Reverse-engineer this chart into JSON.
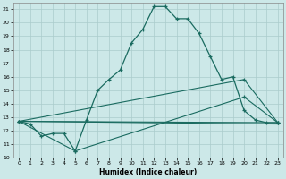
{
  "xlabel": "Humidex (Indice chaleur)",
  "background_color": "#cce8e8",
  "grid_color": "#aacccc",
  "line_color": "#1a6b60",
  "xlim": [
    -0.5,
    23.5
  ],
  "ylim": [
    10,
    21.5
  ],
  "yticks": [
    10,
    11,
    12,
    13,
    14,
    15,
    16,
    17,
    18,
    19,
    20,
    21
  ],
  "xticks": [
    0,
    1,
    2,
    3,
    4,
    5,
    6,
    7,
    8,
    9,
    10,
    11,
    12,
    13,
    14,
    15,
    16,
    17,
    18,
    19,
    20,
    21,
    22,
    23
  ],
  "line1_x": [
    0,
    1,
    2,
    3,
    4,
    5,
    6,
    7,
    8,
    9,
    10,
    11,
    12,
    13,
    14,
    15,
    16,
    17,
    18,
    19,
    20,
    21,
    22,
    23
  ],
  "line1_y": [
    12.7,
    12.5,
    11.6,
    11.8,
    11.8,
    10.5,
    12.8,
    15.0,
    15.8,
    16.5,
    18.5,
    19.5,
    21.2,
    21.2,
    20.3,
    20.3,
    19.2,
    17.5,
    15.8,
    16.0,
    13.5,
    12.8,
    12.6,
    12.6
  ],
  "line2_x": [
    0,
    23
  ],
  "line2_y": [
    12.7,
    12.6
  ],
  "line3_x": [
    0,
    5,
    20,
    23
  ],
  "line3_y": [
    12.7,
    10.5,
    14.5,
    12.6
  ],
  "line4_x": [
    0,
    23
  ],
  "line4_y": [
    12.7,
    12.5
  ],
  "line5_x": [
    0,
    20,
    23
  ],
  "line5_y": [
    12.7,
    15.8,
    12.6
  ]
}
